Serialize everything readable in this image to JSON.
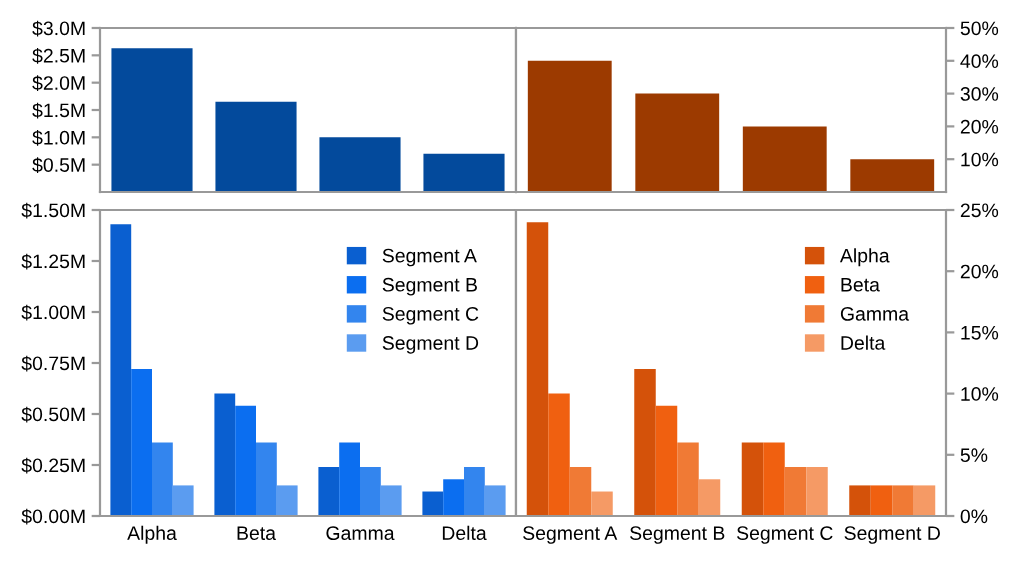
{
  "chart_data": [
    {
      "type": "bar",
      "categories": [
        null,
        null,
        null,
        null
      ],
      "values": [
        2.63,
        1.65,
        1.0,
        0.7
      ],
      "color": "#034a9c",
      "ylim": [
        0,
        3.0
      ],
      "yticks": [
        {
          "value": 0.5,
          "label": "$0.5M"
        },
        {
          "value": 1.0,
          "label": "$1.0M"
        },
        {
          "value": 1.5,
          "label": "$1.5M"
        },
        {
          "value": 2.0,
          "label": "$2.0M"
        },
        {
          "value": 2.5,
          "label": "$2.5M"
        },
        {
          "value": 3.0,
          "label": "$3.0M"
        }
      ],
      "tick_labels": "y",
      "grid": false,
      "legend": false
    },
    {
      "type": "bar",
      "categories": [
        null,
        null,
        null,
        null
      ],
      "values": [
        40,
        30,
        20,
        10
      ],
      "color": "#9c3a00",
      "ylim": [
        0,
        50
      ],
      "yticks": [
        {
          "value": 10,
          "label": "10%"
        },
        {
          "value": 20,
          "label": "20%"
        },
        {
          "value": 30,
          "label": "30%"
        },
        {
          "value": 40,
          "label": "40%"
        },
        {
          "value": 50,
          "label": "50%"
        }
      ],
      "tick_labels": "y",
      "grid": false,
      "legend": false
    },
    {
      "type": "bar",
      "categories": [
        "Alpha",
        "Beta",
        "Gamma",
        "Delta"
      ],
      "series": [
        {
          "name": "Segment A",
          "color": "#0a5fd0",
          "values": [
            1.43,
            0.6,
            0.24,
            0.12
          ]
        },
        {
          "name": "Segment B",
          "color": "#0b6ef0",
          "values": [
            0.72,
            0.54,
            0.36,
            0.18
          ]
        },
        {
          "name": "Segment C",
          "color": "#3385ee",
          "values": [
            0.36,
            0.36,
            0.24,
            0.24
          ]
        },
        {
          "name": "Segment D",
          "color": "#5b9cf0",
          "values": [
            0.15,
            0.15,
            0.15,
            0.15
          ]
        }
      ],
      "ylim": [
        0,
        1.5
      ],
      "yticks": [
        {
          "value": 0,
          "label": "$0.00M"
        },
        {
          "value": 0.25,
          "label": "$0.25M"
        },
        {
          "value": 0.5,
          "label": "$0.50M"
        },
        {
          "value": 0.75,
          "label": "$0.75M"
        },
        {
          "value": 1.0,
          "label": "$1.00M"
        },
        {
          "value": 1.25,
          "label": "$1.25M"
        },
        {
          "value": 1.5,
          "label": "$1.50M"
        }
      ],
      "grid": false,
      "legend": "top right"
    },
    {
      "type": "bar",
      "categories": [
        "Segment A",
        "Segment B",
        "Segment C",
        "Segment D"
      ],
      "series": [
        {
          "name": "Alpha",
          "color": "#d4520a",
          "values": [
            24,
            12,
            6,
            2.5
          ]
        },
        {
          "name": "Beta",
          "color": "#f06010",
          "values": [
            10,
            9,
            6,
            2.5
          ]
        },
        {
          "name": "Gamma",
          "color": "#f07a35",
          "values": [
            4,
            6,
            4,
            2.5
          ]
        },
        {
          "name": "Delta",
          "color": "#f59a65",
          "values": [
            2,
            3,
            4,
            2.5
          ]
        }
      ],
      "ylim": [
        0,
        25
      ],
      "yticks": [
        {
          "value": 0,
          "label": "0%"
        },
        {
          "value": 5,
          "label": "5%"
        },
        {
          "value": 10,
          "label": "10%"
        },
        {
          "value": 15,
          "label": "15%"
        },
        {
          "value": 20,
          "label": "20%"
        },
        {
          "value": 25,
          "label": "25%"
        }
      ],
      "grid": false,
      "legend": "top right"
    }
  ]
}
